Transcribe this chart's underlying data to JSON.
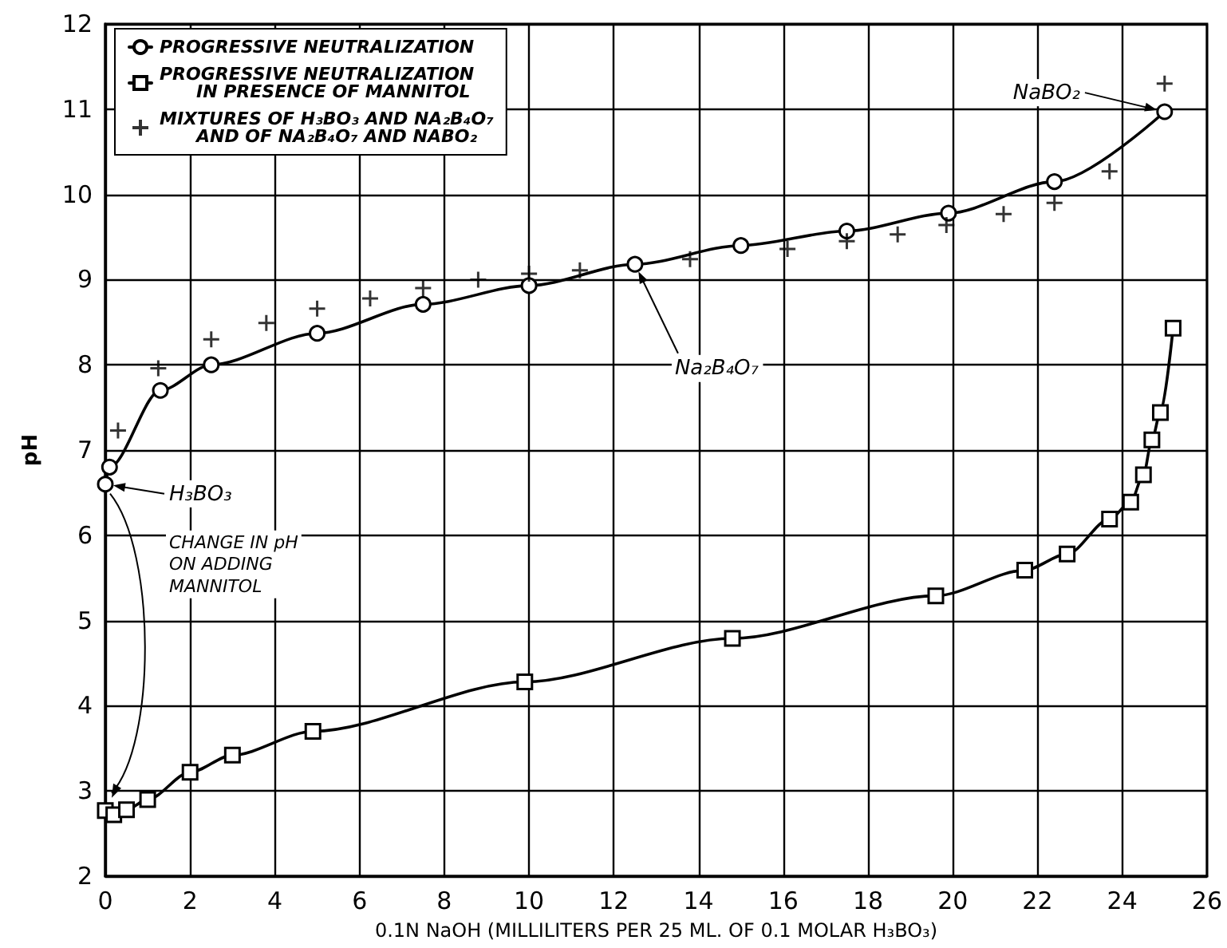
{
  "chart_data": {
    "type": "line",
    "xlabel": "0.1N NaOH (MILLILITERS PER 25 ML. OF 0.1 MOLAR H₃BO₃)",
    "ylabel": "pH",
    "xlim": [
      0,
      26
    ],
    "xticks": [
      0,
      2,
      4,
      6,
      8,
      10,
      12,
      14,
      16,
      18,
      20,
      22,
      24,
      26
    ],
    "ylim": [
      2,
      12
    ],
    "yticks": [
      2,
      3,
      4,
      5,
      6,
      7,
      8,
      9,
      10,
      11,
      12
    ],
    "grid": true,
    "legend": "top left",
    "line_style": "solid",
    "series": [
      {
        "name": "PROGRESSIVE NEUTRALIZATION",
        "type": "line",
        "marker": "circle",
        "color": "#000000",
        "x": [
          0,
          0.1,
          1.3,
          2.5,
          5,
          7.5,
          10,
          12.5,
          15,
          17.5,
          19.9,
          22.4,
          25
        ],
        "values": [
          6.6,
          6.8,
          7.7,
          8.0,
          8.37,
          8.71,
          8.93,
          9.18,
          9.4,
          9.57,
          9.78,
          10.15,
          10.97
        ]
      },
      {
        "name": "PROGRESSIVE NEUTRALIZATION\n      IN PRESENCE OF MANNITOL",
        "type": "line",
        "marker": "square",
        "color": "#000000",
        "x": [
          0,
          0.2,
          0.5,
          1,
          2,
          3,
          4.9,
          9.9,
          14.8,
          19.6,
          21.7,
          22.7,
          23.7,
          24.2,
          24.5,
          24.7,
          24.9,
          25.2
        ],
        "values": [
          2.77,
          2.72,
          2.78,
          2.9,
          3.22,
          3.42,
          3.7,
          4.28,
          4.79,
          5.29,
          5.59,
          5.78,
          6.19,
          6.39,
          6.71,
          7.12,
          7.44,
          8.43
        ]
      },
      {
        "name": "MIXTURES OF H₃BO₃ AND NA₂B₄O₇\n      AND OF NA₂B₄O₇ AND NABO₂",
        "type": "scatter",
        "marker": "cross",
        "color": "#000000",
        "x": [
          0.3,
          1.25,
          2.5,
          3.8,
          5,
          6.25,
          7.5,
          8.8,
          10,
          11.2,
          13.8,
          16.1,
          17.5,
          18.7,
          19.85,
          21.2,
          22.4,
          23.7,
          25
        ],
        "values": [
          7.23,
          7.96,
          8.3,
          8.49,
          8.66,
          8.78,
          8.9,
          9.0,
          9.07,
          9.11,
          9.24,
          9.36,
          9.45,
          9.53,
          9.64,
          9.77,
          9.9,
          10.27,
          11.3
        ]
      }
    ],
    "annotations": [
      "H₃BO₃",
      "Na₂B₄O₇",
      "NaBO₂",
      "CHANGE IN pH\nON ADDING\nMANNITOL"
    ]
  }
}
